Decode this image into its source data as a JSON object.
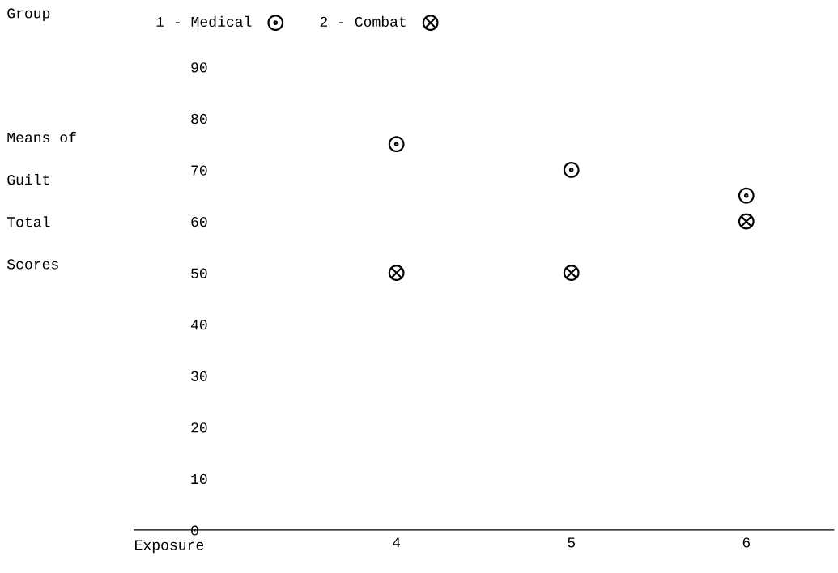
{
  "chart_data": {
    "type": "scatter",
    "legend_title": "Group",
    "xlabel": "Exposure",
    "ylabel": "Means of\nGuilt\nTotal\nScores",
    "categories": [
      null,
      "4",
      "5",
      "6"
    ],
    "series": [
      {
        "name": "1 - Medical",
        "color": "#000000",
        "marker": "circle",
        "values": [
          null,
          75,
          70,
          65
        ]
      },
      {
        "name": "2 - Combat",
        "color": "#000000",
        "marker": "cross",
        "values": [
          null,
          50,
          50,
          60
        ]
      }
    ],
    "ylim": [
      0,
      90
    ],
    "yticks": [
      0,
      10,
      20,
      30,
      40,
      50,
      60,
      70,
      80,
      90
    ],
    "grid": false,
    "legend": "top"
  }
}
